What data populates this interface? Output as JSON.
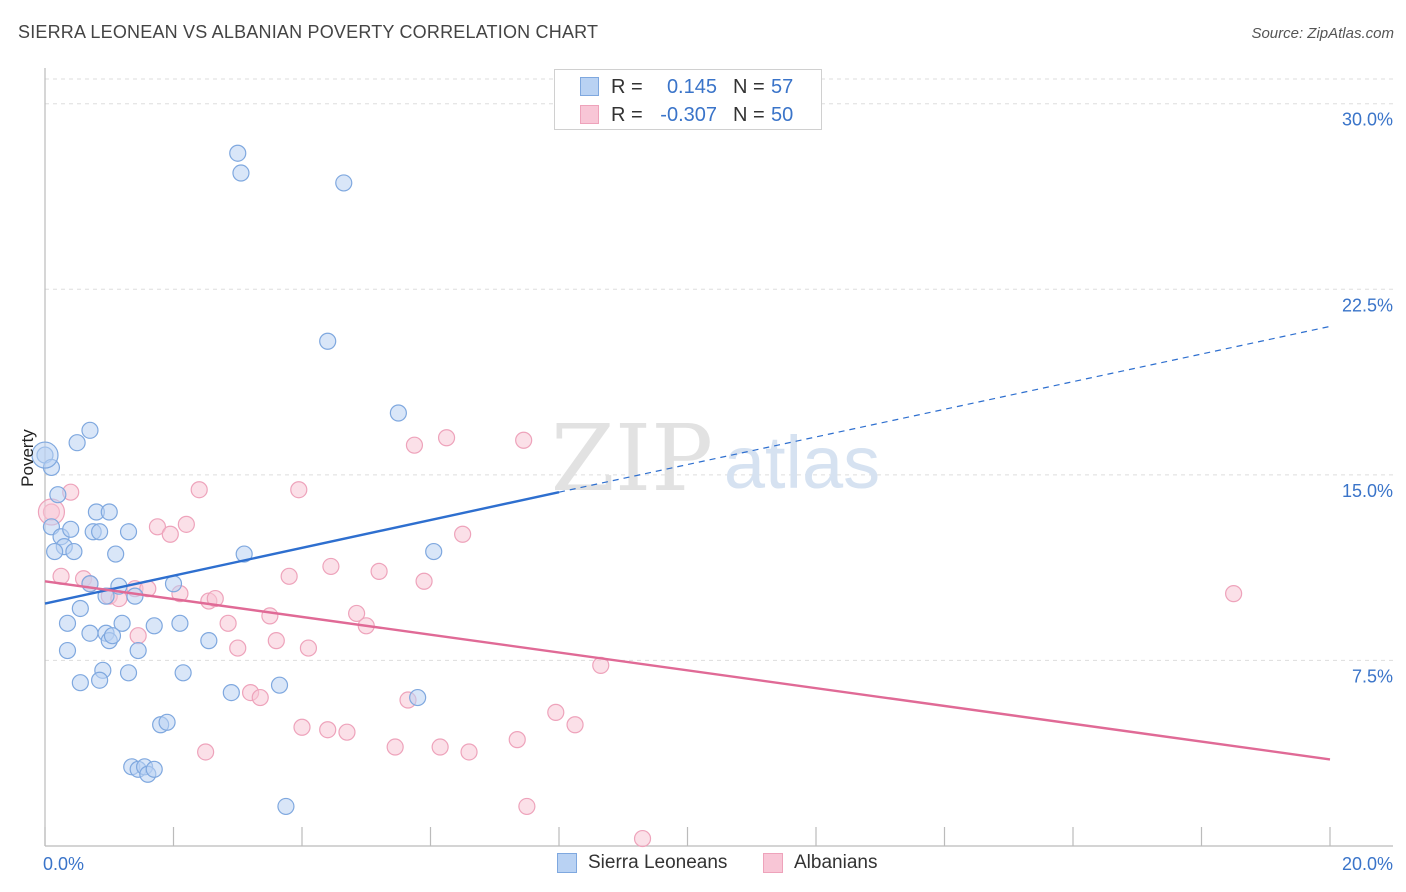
{
  "header": {
    "title": "SIERRA LEONEAN VS ALBANIAN POVERTY CORRELATION CHART",
    "source": "Source: ZipAtlas.com"
  },
  "watermark": {
    "zip": "ZIP",
    "atlas": "atlas"
  },
  "legend": {
    "rows": [
      {
        "r_label": "R =",
        "r_value": "0.145",
        "n_label": "N =",
        "n_value": "57"
      },
      {
        "r_label": "R =",
        "r_value": "-0.307",
        "n_label": "N =",
        "n_value": "50"
      }
    ],
    "bottom": [
      "Sierra Leoneans",
      "Albanians"
    ]
  },
  "colors": {
    "blue_fill": "#b9d2f3",
    "blue_stroke": "#7fa8df",
    "blue_line": "#2e6fcf",
    "pink_fill": "#f8c6d6",
    "pink_stroke": "#eea3bb",
    "pink_line": "#e06a96",
    "tick_text": "#3a74c9",
    "grid": "#dddddd"
  },
  "chart_data": {
    "type": "scatter",
    "title": "SIERRA LEONEAN VS ALBANIAN POVERTY CORRELATION CHART",
    "xlabel": "",
    "ylabel": "Poverty",
    "xlim": [
      0,
      20
    ],
    "ylim": [
      0,
      31
    ],
    "x_tick_labels": [
      "0.0%",
      "20.0%"
    ],
    "y_ticks": [
      7.5,
      15.0,
      22.5,
      30.0
    ],
    "y_tick_labels": [
      "7.5%",
      "15.0%",
      "22.5%",
      "30.0%"
    ],
    "grid": true,
    "series": [
      {
        "name": "Sierra Leoneans",
        "r": 0.145,
        "n": 57,
        "trend": {
          "x0": 0,
          "y0": 9.8,
          "x1": 8.0,
          "y1": 14.3,
          "dash_to_x": 20,
          "dash_to_y": 21.0
        },
        "points": [
          [
            0.0,
            15.8
          ],
          [
            0.1,
            15.3
          ],
          [
            0.2,
            14.2
          ],
          [
            0.5,
            16.3
          ],
          [
            0.7,
            16.8
          ],
          [
            0.1,
            12.9
          ],
          [
            0.25,
            12.5
          ],
          [
            0.4,
            12.8
          ],
          [
            0.3,
            12.1
          ],
          [
            0.15,
            11.9
          ],
          [
            0.45,
            11.9
          ],
          [
            0.75,
            12.7
          ],
          [
            0.85,
            12.7
          ],
          [
            0.8,
            13.5
          ],
          [
            1.0,
            13.5
          ],
          [
            1.3,
            12.7
          ],
          [
            1.1,
            11.8
          ],
          [
            0.7,
            10.6
          ],
          [
            0.95,
            10.1
          ],
          [
            1.15,
            10.5
          ],
          [
            1.4,
            10.1
          ],
          [
            2.0,
            10.6
          ],
          [
            0.35,
            9.0
          ],
          [
            0.55,
            9.6
          ],
          [
            0.7,
            8.6
          ],
          [
            0.95,
            8.6
          ],
          [
            1.2,
            9.0
          ],
          [
            1.7,
            8.9
          ],
          [
            2.1,
            9.0
          ],
          [
            0.35,
            7.9
          ],
          [
            1.0,
            8.3
          ],
          [
            1.45,
            7.9
          ],
          [
            2.55,
            8.3
          ],
          [
            0.9,
            7.1
          ],
          [
            0.85,
            6.7
          ],
          [
            0.55,
            6.6
          ],
          [
            1.3,
            7.0
          ],
          [
            2.15,
            7.0
          ],
          [
            2.9,
            6.2
          ],
          [
            3.65,
            6.5
          ],
          [
            5.8,
            6.0
          ],
          [
            1.8,
            4.9
          ],
          [
            1.9,
            5.0
          ],
          [
            1.35,
            3.2
          ],
          [
            1.45,
            3.1
          ],
          [
            1.55,
            3.2
          ],
          [
            1.6,
            2.9
          ],
          [
            1.7,
            3.1
          ],
          [
            3.05,
            27.2
          ],
          [
            3.0,
            28.0
          ],
          [
            4.65,
            26.8
          ],
          [
            4.4,
            20.4
          ],
          [
            5.5,
            17.5
          ],
          [
            3.1,
            11.8
          ],
          [
            6.05,
            11.9
          ],
          [
            3.75,
            1.6
          ],
          [
            1.05,
            8.5
          ]
        ]
      },
      {
        "name": "Albanians",
        "r": -0.307,
        "n": 50,
        "trend": {
          "x0": 0,
          "y0": 10.7,
          "x1": 20,
          "y1": 3.5
        },
        "points": [
          [
            0.1,
            13.5
          ],
          [
            0.4,
            14.3
          ],
          [
            0.25,
            10.9
          ],
          [
            0.6,
            10.8
          ],
          [
            0.7,
            10.6
          ],
          [
            1.0,
            10.1
          ],
          [
            1.15,
            10.0
          ],
          [
            1.4,
            10.4
          ],
          [
            1.6,
            10.4
          ],
          [
            1.75,
            12.9
          ],
          [
            1.95,
            12.6
          ],
          [
            2.2,
            13.0
          ],
          [
            2.4,
            14.4
          ],
          [
            2.1,
            10.2
          ],
          [
            2.55,
            9.9
          ],
          [
            2.65,
            10.0
          ],
          [
            2.85,
            9.0
          ],
          [
            1.45,
            8.5
          ],
          [
            3.0,
            8.0
          ],
          [
            3.5,
            9.3
          ],
          [
            3.6,
            8.3
          ],
          [
            4.1,
            8.0
          ],
          [
            3.8,
            10.9
          ],
          [
            4.45,
            11.3
          ],
          [
            5.2,
            11.1
          ],
          [
            4.85,
            9.4
          ],
          [
            5.0,
            8.9
          ],
          [
            3.2,
            6.2
          ],
          [
            3.35,
            6.0
          ],
          [
            5.65,
            5.9
          ],
          [
            4.0,
            4.8
          ],
          [
            4.4,
            4.7
          ],
          [
            4.7,
            4.6
          ],
          [
            5.45,
            4.0
          ],
          [
            6.15,
            4.0
          ],
          [
            6.6,
            3.8
          ],
          [
            7.35,
            4.3
          ],
          [
            7.95,
            5.4
          ],
          [
            8.25,
            4.9
          ],
          [
            8.65,
            7.3
          ],
          [
            3.95,
            14.4
          ],
          [
            5.75,
            16.2
          ],
          [
            6.25,
            16.5
          ],
          [
            7.45,
            16.4
          ],
          [
            6.5,
            12.6
          ],
          [
            5.9,
            10.7
          ],
          [
            7.5,
            1.6
          ],
          [
            9.3,
            0.3
          ],
          [
            18.5,
            10.2
          ],
          [
            2.5,
            3.8
          ]
        ]
      }
    ]
  }
}
